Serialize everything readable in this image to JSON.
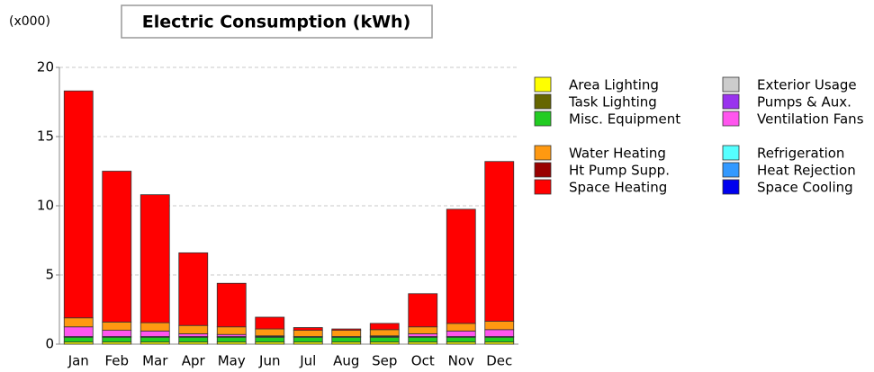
{
  "chart_data": {
    "type": "bar",
    "stacked": true,
    "title": "Electric Consumption (kWh)",
    "y_unit": "(x000)",
    "categories": [
      "Jan",
      "Feb",
      "Mar",
      "Apr",
      "May",
      "Jun",
      "Jul",
      "Aug",
      "Sep",
      "Oct",
      "Nov",
      "Dec"
    ],
    "ylim": [
      0,
      20
    ],
    "yticks": [
      0,
      5,
      10,
      15,
      20
    ],
    "grid": true,
    "series": [
      {
        "name": "Area Lighting",
        "color": "#ffff00",
        "values": [
          0.15,
          0.15,
          0.15,
          0.15,
          0.15,
          0.15,
          0.15,
          0.15,
          0.15,
          0.15,
          0.15,
          0.15
        ]
      },
      {
        "name": "Task Lighting",
        "color": "#666600",
        "values": [
          0,
          0,
          0,
          0,
          0,
          0,
          0,
          0,
          0,
          0,
          0,
          0
        ]
      },
      {
        "name": "Misc. Equipment",
        "color": "#22cc22",
        "values": [
          0.35,
          0.35,
          0.35,
          0.35,
          0.35,
          0.35,
          0.35,
          0.35,
          0.35,
          0.35,
          0.35,
          0.35
        ]
      },
      {
        "name": "Exterior Usage",
        "color": "#cccccc",
        "values": [
          0,
          0,
          0,
          0,
          0,
          0,
          0,
          0,
          0,
          0,
          0,
          0
        ]
      },
      {
        "name": "Pumps & Aux.",
        "color": "#9933ee",
        "values": [
          0.05,
          0.05,
          0.05,
          0.05,
          0.05,
          0.05,
          0.05,
          0.05,
          0.05,
          0.05,
          0.05,
          0.05
        ]
      },
      {
        "name": "Ventilation Fans",
        "color": "#ff55ee",
        "values": [
          0.7,
          0.45,
          0.4,
          0.2,
          0.15,
          0.05,
          0,
          0,
          0.05,
          0.2,
          0.4,
          0.5
        ]
      },
      {
        "name": "Water Heating",
        "color": "#ff9911",
        "values": [
          0.65,
          0.6,
          0.6,
          0.6,
          0.55,
          0.5,
          0.45,
          0.45,
          0.45,
          0.5,
          0.55,
          0.6
        ]
      },
      {
        "name": "Ht Pump Supp.",
        "color": "#990000",
        "values": [
          0,
          0,
          0,
          0,
          0,
          0,
          0,
          0,
          0,
          0,
          0,
          0
        ]
      },
      {
        "name": "Space Heating",
        "color": "#ff0000",
        "values": [
          16.4,
          10.9,
          9.25,
          5.25,
          3.15,
          0.85,
          0.2,
          0.1,
          0.45,
          2.4,
          8.25,
          11.55
        ]
      },
      {
        "name": "Refrigeration",
        "color": "#55ffff",
        "values": [
          0,
          0,
          0,
          0,
          0,
          0,
          0,
          0,
          0,
          0,
          0,
          0
        ]
      },
      {
        "name": "Heat Rejection",
        "color": "#3399ff",
        "values": [
          0,
          0,
          0,
          0,
          0,
          0,
          0,
          0,
          0,
          0,
          0,
          0
        ]
      },
      {
        "name": "Space Cooling",
        "color": "#0000ee",
        "values": [
          0,
          0,
          0,
          0,
          0,
          0,
          0,
          0,
          0,
          0,
          0,
          0
        ]
      }
    ]
  }
}
